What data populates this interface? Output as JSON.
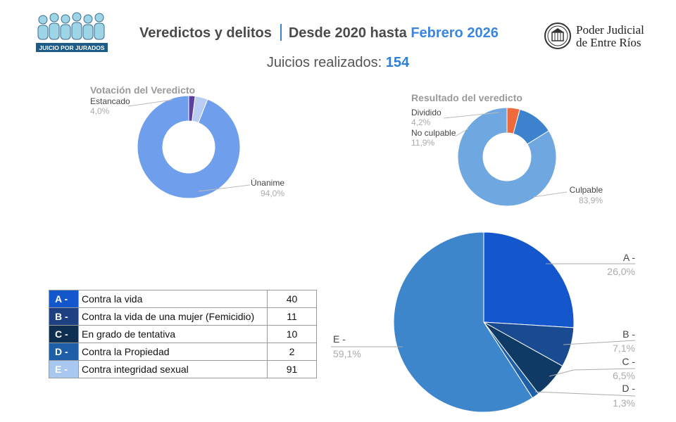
{
  "header": {
    "title_main": "Veredictos y delitos",
    "title_range": "Desde 2020 hasta",
    "title_highlight": "Febrero 2026",
    "logo_left_text": "JUICIO POR JURADOS",
    "logo_right_line1": "Poder Judicial",
    "logo_right_line2": "de Entre Ríos"
  },
  "subtitle": {
    "label": "Juicios realizados:",
    "count": "154"
  },
  "chart_data": [
    {
      "type": "pie",
      "donut": true,
      "title": "Votación del Veredicto",
      "slices": [
        {
          "label": "Únanime",
          "percent_label": "94,0%",
          "value": 94.0,
          "color": "#6f9eed"
        },
        {
          "label": "Estancado",
          "percent_label": "4,0%",
          "value": 4.0,
          "color": "#b9cdf2"
        },
        {
          "label": "",
          "percent_label": "",
          "value": 2.0,
          "color": "#5a3fa0"
        }
      ]
    },
    {
      "type": "pie",
      "donut": true,
      "title": "Resultado del veredicto",
      "slices": [
        {
          "label": "Culpable",
          "percent_label": "83,9%",
          "value": 83.9,
          "color": "#6fa7e0"
        },
        {
          "label": "No culpable",
          "percent_label": "11,9%",
          "value": 11.9,
          "color": "#3d82cd"
        },
        {
          "label": "Dividido",
          "percent_label": "4,2%",
          "value": 4.2,
          "color": "#ef6a3a"
        }
      ]
    },
    {
      "type": "pie",
      "donut": false,
      "title": "",
      "slices": [
        {
          "label": "A -",
          "percent_label": "26,0%",
          "value": 40,
          "color": "#1456cc"
        },
        {
          "label": "B -",
          "percent_label": "7,1%",
          "value": 11,
          "color": "#1a4a8f"
        },
        {
          "label": "C -",
          "percent_label": "6,5%",
          "value": 10,
          "color": "#0f3a66"
        },
        {
          "label": "D -",
          "percent_label": "1,3%",
          "value": 2,
          "color": "#1f5fa8"
        },
        {
          "label": "E -",
          "percent_label": "59,1%",
          "value": 91,
          "color": "#3e86cc"
        }
      ]
    }
  ],
  "table": {
    "rows": [
      {
        "code": "A -",
        "label": "Contra la vida",
        "count": "40",
        "color": "#1456cc"
      },
      {
        "code": "B -",
        "label": "Contra la vida de una mujer (Femicidio)",
        "count": "11",
        "color": "#1e3f82"
      },
      {
        "code": "C -",
        "label": "En grado de tentativa",
        "count": "10",
        "color": "#0f2f52"
      },
      {
        "code": "D -",
        "label": "Contra la Propiedad",
        "count": "2",
        "color": "#1f5fa8"
      },
      {
        "code": "E -",
        "label": "Contra integridad sexual",
        "count": "91",
        "color": "#a8c8ef"
      }
    ]
  }
}
